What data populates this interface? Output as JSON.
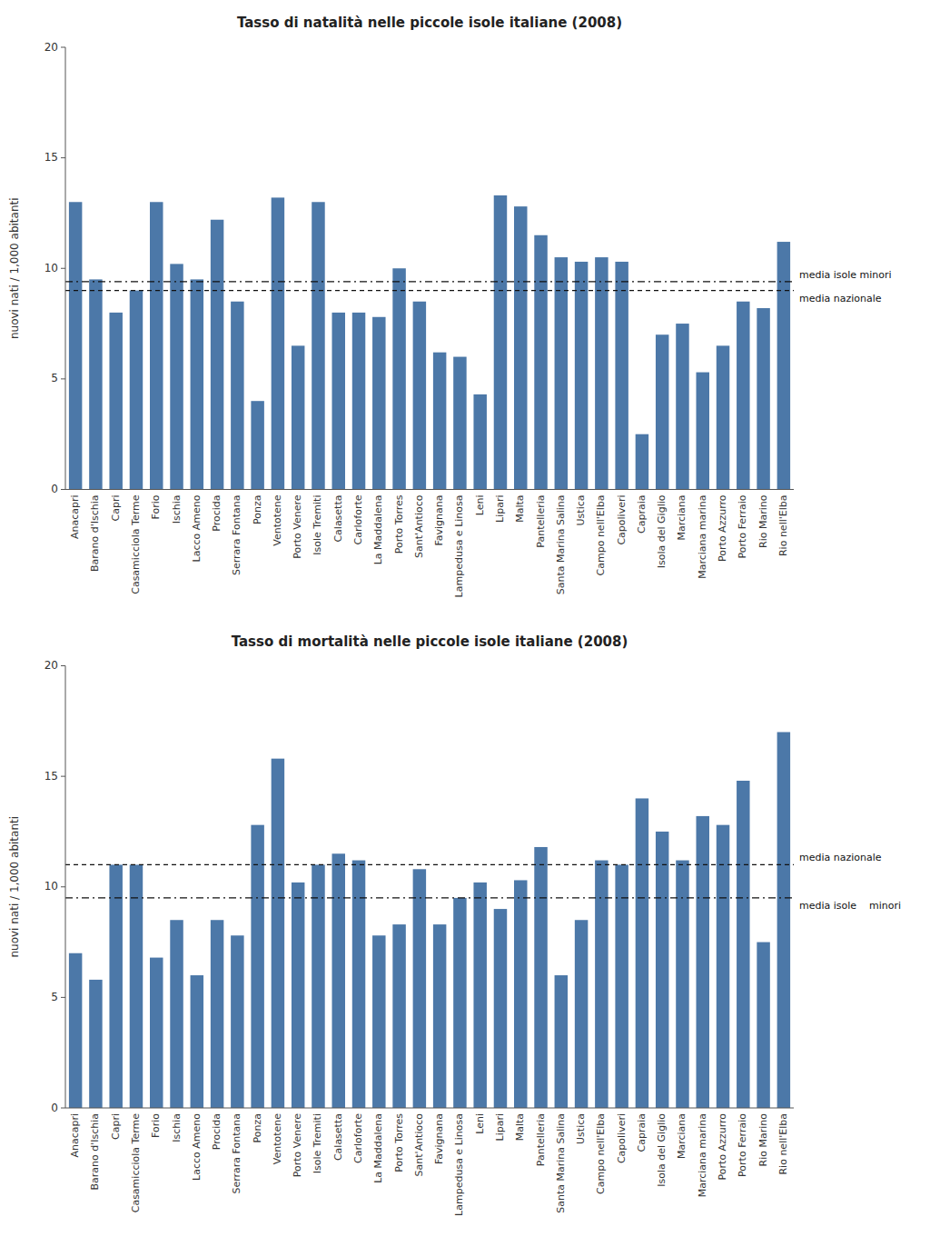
{
  "chart_data": [
    {
      "type": "bar",
      "title": "Tasso di natalità nelle piccole isole italiane (2008)",
      "y_label": "nuovi nati / 1,000 abitanti",
      "categories": [
        "Anacapri",
        "Barano d'Ischia",
        "Capri",
        "Casamicciola Terme",
        "Forio",
        "Ischia",
        "Lacco Ameno",
        "Procida",
        "Serrara Fontana",
        "Ponza",
        "Ventotene",
        "Porto Venere",
        "Isole Tremiti",
        "Calasetta",
        "Carloforte",
        "La Maddalena",
        "Porto Torres",
        "Sant'Antioco",
        "Favignana",
        "Lampedusa e Linosa",
        "Leni",
        "Lipari",
        "Malta",
        "Pantelleria",
        "Santa Marina Salina",
        "Ustica",
        "Campo nell'Elba",
        "Capoliveri",
        "Capraia",
        "Isola del Giglio",
        "Marciana",
        "Marciana marina",
        "Porto Azzurro",
        "Porto Ferraio",
        "Rio Marino",
        "Rio nell'Elba"
      ],
      "values": [
        13.0,
        9.5,
        8.0,
        9.0,
        13.0,
        10.2,
        9.5,
        12.2,
        8.5,
        4.0,
        13.2,
        6.5,
        13.0,
        8.0,
        8.0,
        7.8,
        10.0,
        8.5,
        6.2,
        6.0,
        4.3,
        13.3,
        12.8,
        11.5,
        10.5,
        10.3,
        10.5,
        10.3,
        2.5,
        7.0,
        7.5,
        5.3,
        6.5,
        8.5,
        8.2,
        11.2
      ],
      "color": "#4c78a8",
      "ylim": [
        0,
        20
      ],
      "yticks": [
        0,
        5,
        10,
        15,
        20
      ],
      "grid": false,
      "reference_lines": [
        {
          "label": "media isole minori",
          "value": 9.4,
          "line_style": "dashdot"
        },
        {
          "label": "media nazionale",
          "value": 9.0,
          "line_style": "dashed"
        }
      ]
    },
    {
      "type": "bar",
      "title": "Tasso di mortalità nelle piccole isole italiane (2008)",
      "y_label": "nuovi nati / 1,000 abitanti",
      "categories": [
        "Anacapri",
        "Barano d'Ischia",
        "Capri",
        "Casamicciola Terme",
        "Forio",
        "Ischia",
        "Lacco Ameno",
        "Procida",
        "Serrara Fontana",
        "Ponza",
        "Ventotene",
        "Porto Venere",
        "Isole Tremiti",
        "Calasetta",
        "Carloforte",
        "La Maddalena",
        "Porto Torres",
        "Sant'Antioco",
        "Favignana",
        "Lampedusa e Linosa",
        "Leni",
        "Lipari",
        "Malta",
        "Pantelleria",
        "Santa Marina Salina",
        "Ustica",
        "Campo nell'Elba",
        "Capoliveri",
        "Capraia",
        "Isola del Giglio",
        "Marciana",
        "Marciana marina",
        "Porto Azzurro",
        "Porto Ferraio",
        "Rio Marino",
        "Rio nell'Elba"
      ],
      "values": [
        7.0,
        5.8,
        11.0,
        11.0,
        6.8,
        8.5,
        6.0,
        8.5,
        7.8,
        12.8,
        15.8,
        10.2,
        11.0,
        11.5,
        11.2,
        7.8,
        8.3,
        10.8,
        8.3,
        9.5,
        10.2,
        9.0,
        10.3,
        11.8,
        6.0,
        8.5,
        11.2,
        11.0,
        14.0,
        12.5,
        11.2,
        13.2,
        12.8,
        14.8,
        7.5,
        17.0
      ],
      "color": "#4c78a8",
      "ylim": [
        0,
        20
      ],
      "yticks": [
        0,
        5,
        10,
        15,
        20
      ],
      "grid": false,
      "reference_lines": [
        {
          "label": "media isole    minori",
          "value": 9.5,
          "line_style": "dashdot"
        },
        {
          "label": "media nazionale",
          "value": 11.0,
          "line_style": "dashed"
        }
      ]
    }
  ]
}
